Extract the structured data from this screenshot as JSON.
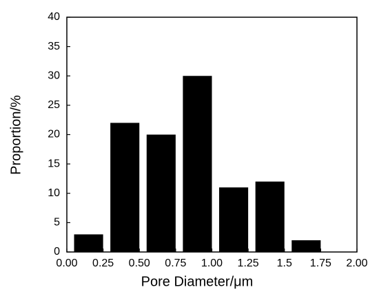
{
  "chart_data": {
    "type": "bar",
    "xlabel": "Pore Diameter/μm",
    "ylabel": "Proportion/%",
    "x": [
      0.15,
      0.4,
      0.65,
      0.9,
      1.15,
      1.4,
      1.65
    ],
    "values": [
      3,
      22,
      20,
      30,
      11,
      12,
      2
    ],
    "bar_width": 0.2,
    "color": "#000000",
    "xlim": [
      0,
      2
    ],
    "ylim": [
      0,
      40
    ],
    "xticks": [
      {
        "value": 0,
        "label": "0.00"
      },
      0.25,
      {
        "value": 0.5,
        "label": "0.50"
      },
      0.75,
      {
        "value": 1,
        "label": "1.00"
      },
      1.25,
      1.5,
      1.75,
      {
        "value": 2,
        "label": "2.00"
      }
    ],
    "yticks": [
      0,
      5,
      10,
      15,
      20,
      25,
      30,
      35,
      40
    ]
  }
}
